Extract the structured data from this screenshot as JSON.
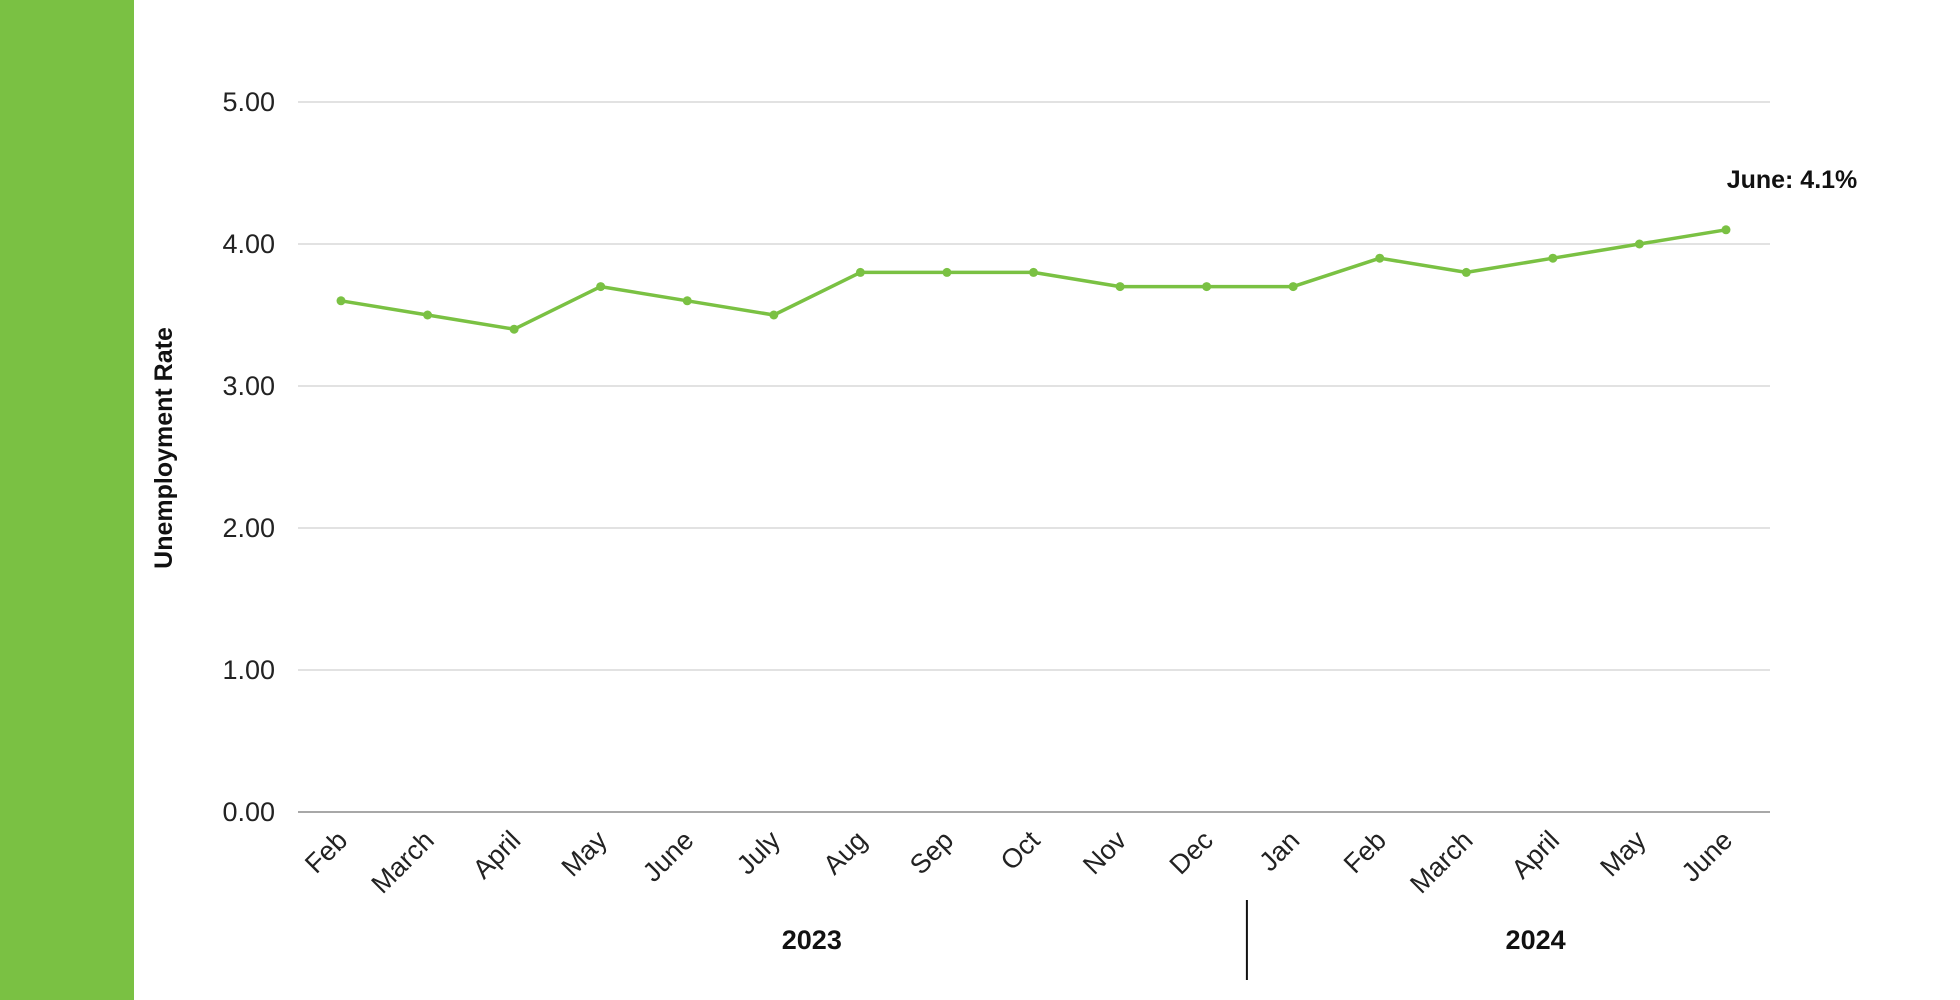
{
  "colors": {
    "accent": "#7ac143",
    "grid": "#d9d9d9",
    "axis": "#8c8c8c",
    "text": "#222222"
  },
  "chart_data": {
    "type": "line",
    "ylabel": "Unemployment Rate",
    "ylim": [
      0,
      5
    ],
    "yticks": [
      "0.00",
      "1.00",
      "2.00",
      "3.00",
      "4.00",
      "5.00"
    ],
    "grid": true,
    "categories": [
      "Feb",
      "March",
      "April",
      "May",
      "June",
      "July",
      "Aug",
      "Sep",
      "Oct",
      "Nov",
      "Dec",
      "Jan",
      "Feb",
      "March",
      "April",
      "May",
      "June"
    ],
    "groups": [
      {
        "label": "2023",
        "count": 11
      },
      {
        "label": "2024",
        "count": 6
      }
    ],
    "series": [
      {
        "values": [
          3.6,
          3.5,
          3.4,
          3.7,
          3.6,
          3.5,
          3.8,
          3.8,
          3.8,
          3.7,
          3.7,
          3.7,
          3.9,
          3.8,
          3.9,
          4.0,
          4.1
        ]
      }
    ],
    "annotation": {
      "text": "June: 4.1%",
      "index": 16
    }
  }
}
